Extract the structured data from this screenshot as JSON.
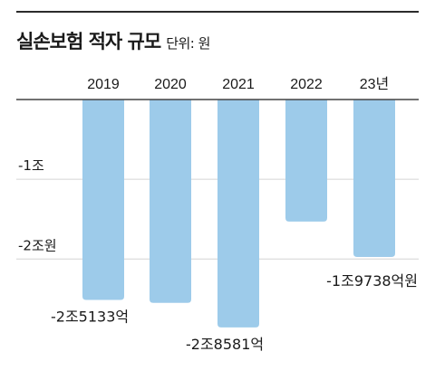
{
  "header": {
    "title": "실손보험 적자 규모",
    "unit": "단위: 원"
  },
  "chart_data": {
    "type": "bar",
    "title": "실손보험 적자 규모",
    "subtitle": "단위: 원",
    "categories": [
      "2019",
      "2020",
      "2021",
      "2022",
      "23년"
    ],
    "values": [
      -25133,
      -25500,
      -28581,
      -15300,
      -19738
    ],
    "value_unit": "억원",
    "data_labels": [
      "-2조5133억",
      "",
      "-2조8581억",
      "",
      "-1조9738억원"
    ],
    "y_ticks": [
      {
        "value": -10000,
        "label": "-1조"
      },
      {
        "value": -20000,
        "label": "-2조원"
      }
    ],
    "ylim": [
      -29500,
      0
    ],
    "grid": true,
    "legend": "none",
    "bar_color": "#9dcbea",
    "grid_color": "#d4d4d4",
    "axis_color": "#444444"
  }
}
